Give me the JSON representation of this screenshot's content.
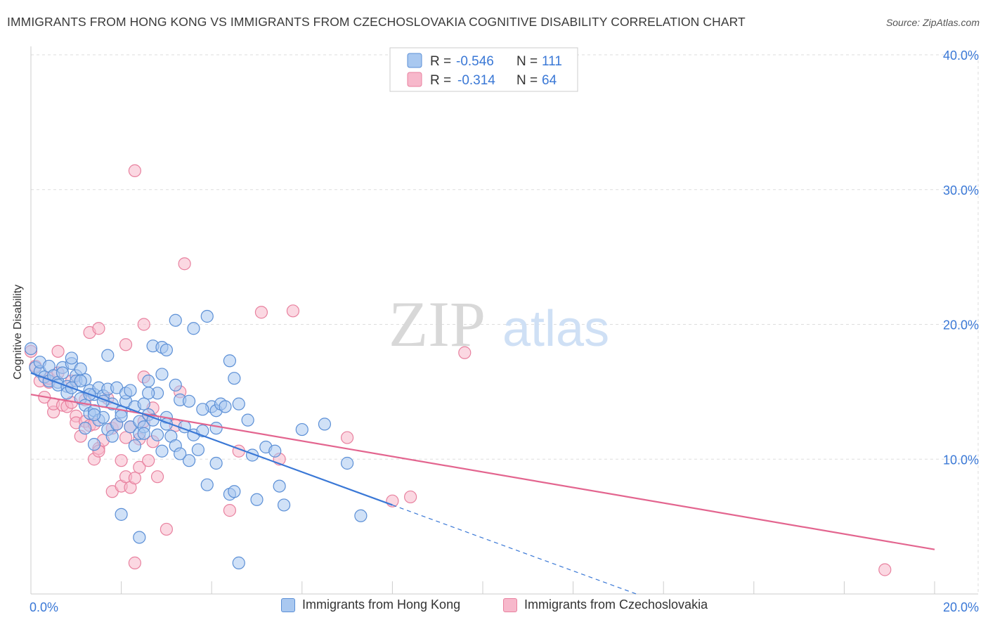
{
  "title": "IMMIGRANTS FROM HONG KONG VS IMMIGRANTS FROM CZECHOSLOVAKIA COGNITIVE DISABILITY CORRELATION CHART",
  "source": "Source: ZipAtlas.com",
  "watermark": {
    "zip": "ZIP",
    "atlas": "atlas"
  },
  "legend": {
    "rows": [
      {
        "r_label": "R =",
        "r_value": "-0.546",
        "n_label": "N =",
        "n_value": "111"
      },
      {
        "r_label": "R =",
        "r_value": "-0.314",
        "n_label": "N =",
        "n_value": "64"
      }
    ]
  },
  "colors": {
    "blue_fill": "#a9c8f0",
    "blue_stroke": "#5b8fd6",
    "blue_line": "#3a78d6",
    "pink_fill": "#f7b8cb",
    "pink_stroke": "#e8819f",
    "pink_line": "#e3658f",
    "value_text": "#3a78d6",
    "grid": "#dddddd"
  },
  "chart_data": {
    "type": "scatter",
    "title": "IMMIGRANTS FROM HONG KONG VS IMMIGRANTS FROM CZECHOSLOVAKIA COGNITIVE DISABILITY CORRELATION CHART",
    "xlabel": "",
    "ylabel": "Cognitive Disability",
    "xlim": [
      0,
      20
    ],
    "ylim": [
      0,
      40
    ],
    "x_tick_labels": [
      "0.0%",
      "20.0%"
    ],
    "y_tick_labels": [
      "10.0%",
      "20.0%",
      "30.0%",
      "40.0%"
    ],
    "y_ticks": [
      10,
      20,
      30,
      40
    ],
    "grid": true,
    "legend_placement": "top-center",
    "series": [
      {
        "name": "Immigrants from Hong Kong",
        "color": "#5b8fd6",
        "r": -0.546,
        "n": 111,
        "trend": {
          "x0": 0.0,
          "y0": 16.4,
          "x1": 8.0,
          "y1": 6.6,
          "dash_x1": 13.4,
          "dash_y1": 0.0
        },
        "points": [
          [
            0.0,
            18.2
          ],
          [
            0.1,
            16.8
          ],
          [
            0.2,
            16.5
          ],
          [
            0.3,
            16.1
          ],
          [
            0.2,
            17.2
          ],
          [
            0.4,
            15.8
          ],
          [
            0.4,
            16.9
          ],
          [
            0.5,
            16.2
          ],
          [
            0.6,
            15.7
          ],
          [
            0.6,
            15.5
          ],
          [
            0.7,
            16.8
          ],
          [
            0.7,
            16.4
          ],
          [
            0.8,
            15.4
          ],
          [
            0.8,
            14.9
          ],
          [
            0.9,
            17.1
          ],
          [
            0.9,
            17.5
          ],
          [
            1.0,
            16.2
          ],
          [
            1.0,
            15.8
          ],
          [
            1.1,
            16.7
          ],
          [
            1.1,
            14.5
          ],
          [
            1.2,
            15.9
          ],
          [
            1.2,
            14.0
          ],
          [
            1.3,
            15.1
          ],
          [
            1.3,
            13.4
          ],
          [
            1.4,
            13.6
          ],
          [
            1.4,
            14.8
          ],
          [
            1.5,
            15.3
          ],
          [
            1.5,
            12.9
          ],
          [
            1.6,
            14.7
          ],
          [
            1.6,
            13.1
          ],
          [
            1.7,
            15.2
          ],
          [
            1.7,
            12.2
          ],
          [
            1.8,
            14.1
          ],
          [
            1.8,
            11.7
          ],
          [
            1.9,
            12.6
          ],
          [
            1.9,
            15.3
          ],
          [
            2.0,
            13.5
          ],
          [
            2.0,
            13.2
          ],
          [
            2.1,
            14.3
          ],
          [
            2.1,
            14.9
          ],
          [
            2.2,
            15.1
          ],
          [
            2.2,
            12.4
          ],
          [
            2.3,
            13.9
          ],
          [
            2.4,
            11.9
          ],
          [
            2.4,
            12.8
          ],
          [
            2.5,
            14.1
          ],
          [
            2.5,
            12.4
          ],
          [
            2.6,
            15.8
          ],
          [
            2.6,
            13.3
          ],
          [
            2.7,
            12.9
          ],
          [
            2.8,
            14.9
          ],
          [
            2.8,
            11.8
          ],
          [
            2.9,
            16.3
          ],
          [
            2.9,
            10.6
          ],
          [
            3.0,
            13.1
          ],
          [
            3.0,
            12.6
          ],
          [
            3.1,
            11.7
          ],
          [
            3.2,
            15.5
          ],
          [
            3.2,
            11.0
          ],
          [
            3.3,
            14.4
          ],
          [
            3.4,
            12.4
          ],
          [
            3.5,
            14.3
          ],
          [
            3.6,
            11.8
          ],
          [
            3.6,
            19.7
          ],
          [
            3.7,
            10.7
          ],
          [
            3.8,
            12.1
          ],
          [
            3.9,
            8.1
          ],
          [
            4.0,
            13.9
          ],
          [
            4.1,
            13.6
          ],
          [
            4.1,
            12.3
          ],
          [
            4.2,
            14.1
          ],
          [
            4.3,
            13.9
          ],
          [
            4.4,
            7.4
          ],
          [
            4.5,
            7.6
          ],
          [
            4.6,
            14.1
          ],
          [
            4.8,
            12.9
          ],
          [
            4.9,
            10.3
          ],
          [
            5.0,
            7.0
          ],
          [
            5.2,
            10.9
          ],
          [
            5.4,
            10.6
          ],
          [
            5.5,
            8.0
          ],
          [
            5.6,
            6.6
          ],
          [
            6.0,
            12.2
          ],
          [
            6.5,
            12.6
          ],
          [
            7.0,
            9.7
          ],
          [
            7.3,
            5.8
          ],
          [
            3.5,
            9.9
          ],
          [
            2.0,
            5.9
          ],
          [
            2.4,
            4.2
          ],
          [
            1.7,
            17.7
          ],
          [
            2.7,
            18.4
          ],
          [
            2.9,
            18.3
          ],
          [
            3.0,
            18.1
          ],
          [
            3.2,
            20.3
          ],
          [
            3.9,
            20.6
          ],
          [
            4.4,
            17.3
          ],
          [
            4.5,
            16.0
          ],
          [
            1.4,
            11.1
          ],
          [
            4.6,
            2.3
          ],
          [
            0.9,
            15.3
          ],
          [
            1.1,
            15.8
          ],
          [
            1.2,
            12.3
          ],
          [
            1.4,
            13.3
          ],
          [
            2.5,
            11.9
          ],
          [
            2.6,
            14.9
          ],
          [
            3.3,
            10.4
          ],
          [
            4.1,
            9.7
          ],
          [
            1.3,
            14.8
          ],
          [
            1.6,
            14.3
          ],
          [
            2.3,
            11.0
          ],
          [
            3.8,
            13.7
          ]
        ]
      },
      {
        "name": "Immigrants from Czechoslovakia",
        "color": "#e8819f",
        "r": -0.314,
        "n": 64,
        "trend": {
          "x0": 0.0,
          "y0": 14.8,
          "x1": 20.0,
          "y1": 3.3
        },
        "points": [
          [
            0.0,
            18.0
          ],
          [
            0.1,
            16.9
          ],
          [
            0.2,
            15.8
          ],
          [
            0.3,
            14.6
          ],
          [
            0.4,
            15.7
          ],
          [
            0.4,
            16.0
          ],
          [
            0.5,
            13.5
          ],
          [
            0.5,
            14.1
          ],
          [
            0.6,
            16.4
          ],
          [
            0.6,
            18.0
          ],
          [
            0.7,
            14.0
          ],
          [
            0.8,
            13.9
          ],
          [
            0.9,
            15.8
          ],
          [
            0.9,
            14.2
          ],
          [
            1.0,
            13.2
          ],
          [
            1.0,
            12.7
          ],
          [
            1.1,
            11.7
          ],
          [
            1.2,
            12.8
          ],
          [
            1.2,
            14.4
          ],
          [
            1.3,
            19.4
          ],
          [
            1.3,
            12.5
          ],
          [
            1.4,
            12.6
          ],
          [
            1.4,
            10.0
          ],
          [
            1.5,
            10.8
          ],
          [
            1.5,
            10.6
          ],
          [
            1.6,
            11.4
          ],
          [
            1.7,
            14.5
          ],
          [
            1.8,
            12.3
          ],
          [
            1.8,
            7.6
          ],
          [
            1.9,
            12.6
          ],
          [
            2.0,
            9.9
          ],
          [
            2.0,
            8.0
          ],
          [
            2.1,
            11.6
          ],
          [
            2.1,
            8.7
          ],
          [
            2.2,
            12.4
          ],
          [
            2.2,
            7.9
          ],
          [
            2.3,
            8.6
          ],
          [
            2.4,
            9.4
          ],
          [
            2.4,
            11.5
          ],
          [
            2.5,
            12.8
          ],
          [
            2.5,
            16.1
          ],
          [
            2.6,
            9.9
          ],
          [
            2.7,
            13.8
          ],
          [
            2.7,
            11.3
          ],
          [
            2.8,
            8.7
          ],
          [
            3.0,
            4.8
          ],
          [
            3.2,
            12.5
          ],
          [
            3.3,
            15.0
          ],
          [
            4.4,
            6.2
          ],
          [
            4.6,
            10.6
          ],
          [
            5.1,
            20.9
          ],
          [
            5.5,
            10.0
          ],
          [
            5.8,
            21.0
          ],
          [
            7.0,
            11.6
          ],
          [
            8.0,
            6.9
          ],
          [
            8.4,
            7.2
          ],
          [
            9.6,
            17.9
          ],
          [
            18.9,
            1.8
          ],
          [
            2.3,
            31.4
          ],
          [
            2.3,
            2.3
          ],
          [
            3.4,
            24.5
          ],
          [
            2.1,
            18.5
          ],
          [
            1.5,
            19.7
          ],
          [
            2.5,
            20.0
          ]
        ]
      }
    ]
  },
  "bottom_legend": [
    "Immigrants from Hong Kong",
    "Immigrants from Czechoslovakia"
  ]
}
